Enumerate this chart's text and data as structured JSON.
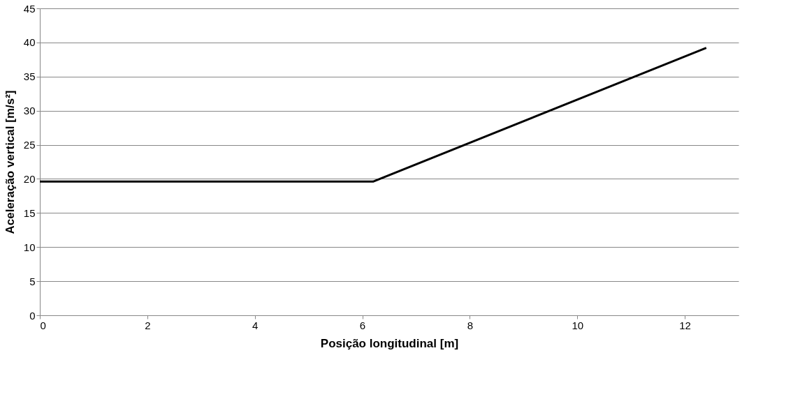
{
  "chart_data": {
    "type": "line",
    "xlabel": "Posição longitudinal [m]",
    "ylabel": "Aceleração vertical [m/s²]",
    "x": [
      0,
      6.2,
      12.4
    ],
    "series": [
      {
        "color": "#000000",
        "values": [
          19.6,
          19.6,
          39.2
        ]
      }
    ],
    "xlim": [
      0,
      13
    ],
    "xticks": [
      0,
      2,
      4,
      6,
      8,
      10,
      12
    ],
    "ylim": [
      0,
      45
    ],
    "yticks": [
      0,
      5,
      10,
      15,
      20,
      25,
      30,
      35,
      40,
      45
    ],
    "grid": "y",
    "marker": "none",
    "line_style": "solid"
  }
}
